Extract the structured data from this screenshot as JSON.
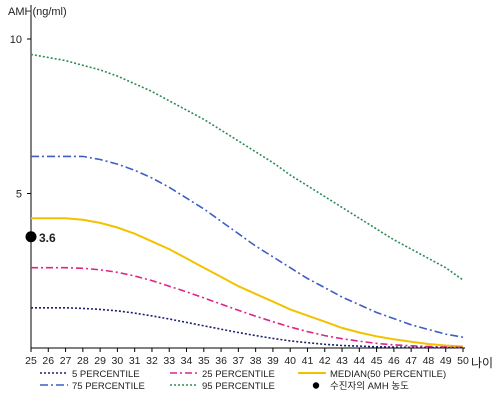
{
  "chart_data": {
    "type": "line",
    "ylabel": "AMH(ng/ml)",
    "xlabel": "나이",
    "x": [
      25,
      26,
      27,
      28,
      29,
      30,
      31,
      32,
      33,
      34,
      35,
      36,
      37,
      38,
      39,
      40,
      41,
      42,
      43,
      44,
      45,
      46,
      47,
      48,
      49,
      50
    ],
    "yticks": [
      5,
      10
    ],
    "ylim": [
      0,
      11.1
    ],
    "xlim": [
      25,
      50
    ],
    "series": [
      {
        "name": "95 PERCENTILE",
        "color": "#2e8b57",
        "dash": "2,2",
        "values": [
          9.5,
          9.4,
          9.3,
          9.15,
          9.0,
          8.8,
          8.55,
          8.3,
          8.0,
          7.7,
          7.4,
          7.05,
          6.7,
          6.35,
          6.0,
          5.6,
          5.25,
          4.9,
          4.55,
          4.2,
          3.85,
          3.5,
          3.2,
          2.9,
          2.6,
          2.2
        ]
      },
      {
        "name": "75 PERCENTILE",
        "color": "#3d5fc4",
        "dash": "8,3,2,3",
        "values": [
          6.2,
          6.2,
          6.2,
          6.2,
          6.1,
          5.95,
          5.75,
          5.5,
          5.2,
          4.85,
          4.5,
          4.1,
          3.7,
          3.3,
          2.95,
          2.6,
          2.25,
          1.95,
          1.65,
          1.4,
          1.15,
          0.95,
          0.75,
          0.6,
          0.45,
          0.35
        ]
      },
      {
        "name": "MEDIAN(50 PERCENTILE)",
        "color": "#f2c200",
        "dash": "",
        "values": [
          4.2,
          4.2,
          4.2,
          4.15,
          4.05,
          3.9,
          3.7,
          3.45,
          3.2,
          2.9,
          2.6,
          2.3,
          2.0,
          1.75,
          1.5,
          1.25,
          1.05,
          0.85,
          0.65,
          0.5,
          0.38,
          0.28,
          0.2,
          0.13,
          0.08,
          0.05
        ]
      },
      {
        "name": "25 PERCENTILE",
        "color": "#e0238a",
        "dash": "7,3,2,3",
        "values": [
          2.6,
          2.6,
          2.6,
          2.58,
          2.53,
          2.45,
          2.33,
          2.18,
          2.0,
          1.82,
          1.62,
          1.42,
          1.22,
          1.03,
          0.85,
          0.68,
          0.53,
          0.4,
          0.3,
          0.22,
          0.15,
          0.1,
          0.07,
          0.05,
          0.03,
          0.02
        ]
      },
      {
        "name": "5 PERCENTILE",
        "color": "#1a1f6e",
        "dash": "2,2",
        "values": [
          1.3,
          1.3,
          1.3,
          1.28,
          1.25,
          1.2,
          1.13,
          1.04,
          0.94,
          0.83,
          0.72,
          0.61,
          0.5,
          0.4,
          0.31,
          0.23,
          0.17,
          0.12,
          0.08,
          0.06,
          0.04,
          0.03,
          0.02,
          0.015,
          0.01,
          0.01
        ]
      }
    ],
    "legend_rows": [
      [
        "5 PERCENTILE",
        "25 PERCENTILE",
        "MEDIAN(50 PERCENTILE)"
      ],
      [
        "75 PERCENTILE",
        "95 PERCENTILE",
        "수진자의 AMH 농도"
      ]
    ],
    "patient_point": {
      "x": 25,
      "y": 3.6,
      "label": "3.6",
      "legend": "수진자의 AMH 농도",
      "color": "#000000"
    },
    "grid": false,
    "legend_position": "bottom"
  }
}
